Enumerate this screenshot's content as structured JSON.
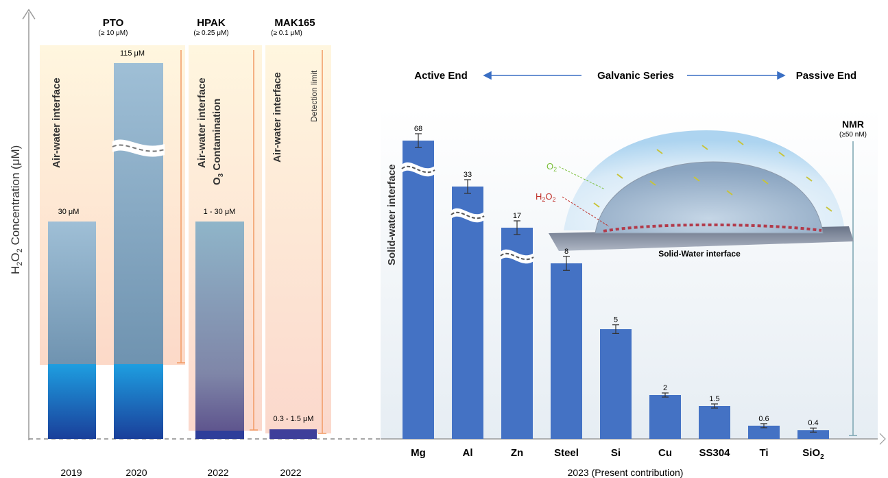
{
  "chart_data": [
    {
      "type": "bar",
      "ylabel_main": "H",
      "ylabel_sub": "2",
      "ylabel_o": "O",
      "ylabel_sub2": "2",
      "ylabel_rest": " Concentration (μM)",
      "groups": [
        {
          "method": "PTO",
          "limit": "(≥ 10 μM)",
          "zone_label": "Air-water interface"
        },
        {
          "method": "HPAK",
          "limit": "(≥ 0.25 μM)",
          "zone_label": "Air-water interface",
          "zone_label2": "O3 Contamination"
        },
        {
          "method": "MAK165",
          "limit": "(≥ 0.1 μM)",
          "zone_label": "Air-water interface",
          "detection": "Detection limit"
        }
      ],
      "bars": [
        {
          "year": "2019",
          "label": "30 μM",
          "value": 30
        },
        {
          "year": "2020",
          "label": "115 μM",
          "value": 115,
          "broken": true
        },
        {
          "year": "2022",
          "label": "1 - 30 μM",
          "value": 30
        },
        {
          "year": "2022",
          "label": "0.3 - 1.5 μM",
          "value": 1.5
        }
      ]
    },
    {
      "type": "bar",
      "header": {
        "left": "Active End",
        "center": "Galvanic Series",
        "right": "Passive End"
      },
      "zone_label": "Solid-water interface",
      "nmr": {
        "title": "NMR",
        "limit": "(≥50 nM)"
      },
      "xlabel": "2023 (Present contribution)",
      "categories": [
        "Mg",
        "Al",
        "Zn",
        "Steel",
        "Si",
        "Cu",
        "SS304",
        "Ti",
        "SiO2"
      ],
      "values": [
        68,
        33,
        17,
        8,
        5,
        2,
        1.5,
        0.6,
        0.4
      ],
      "value_labels": [
        "68",
        "33",
        "17",
        "8",
        "5",
        "2",
        "1.5",
        "0.6",
        "0.4"
      ],
      "broken": [
        true,
        true,
        true,
        false,
        false,
        false,
        false,
        false,
        false
      ],
      "bar_color": "#4472c4"
    }
  ],
  "inset": {
    "o2": "O2",
    "h2o2": "H2O2",
    "caption": "Solid-Water interface"
  }
}
